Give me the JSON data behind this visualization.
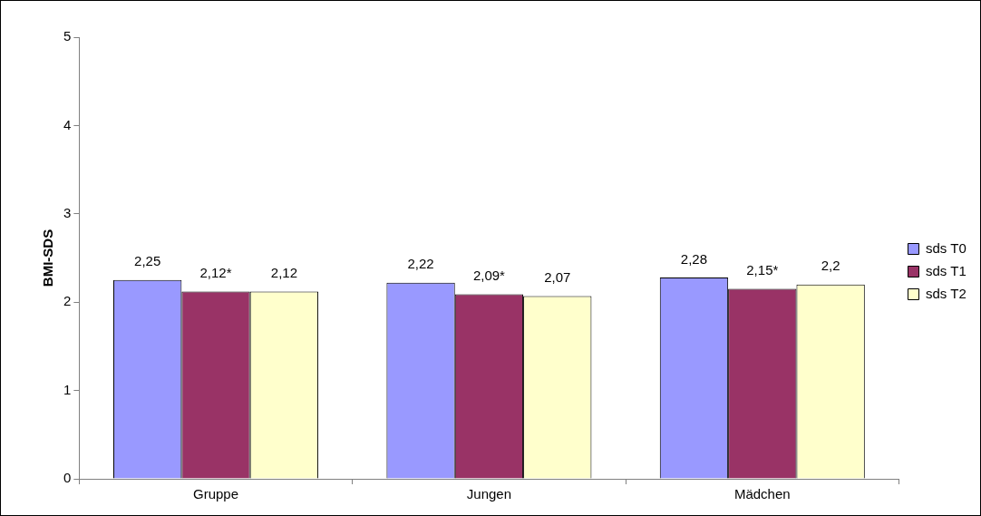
{
  "chart_data": {
    "type": "bar",
    "ylabel": "BMI-SDS",
    "categories": [
      "Gruppe",
      "Jungen",
      "Mädchen"
    ],
    "series": [
      {
        "name": "sds T0",
        "color": "#9999ff",
        "values": [
          2.25,
          2.22,
          2.28
        ],
        "value_labels": [
          "2,25",
          "2,22",
          "2,28"
        ]
      },
      {
        "name": "sds T1",
        "color": "#993366",
        "values": [
          2.12,
          2.09,
          2.15
        ],
        "value_labels": [
          "2,12*",
          "2,09*",
          "2,15*"
        ]
      },
      {
        "name": "sds T2",
        "color": "#ffffcc",
        "values": [
          2.12,
          2.07,
          2.2
        ],
        "value_labels": [
          "2,12",
          "2,07",
          "2,2"
        ]
      }
    ],
    "ylim": [
      0,
      5
    ],
    "yticks": [
      0,
      1,
      2,
      3,
      4,
      5
    ],
    "grid": false,
    "legend": "right"
  }
}
